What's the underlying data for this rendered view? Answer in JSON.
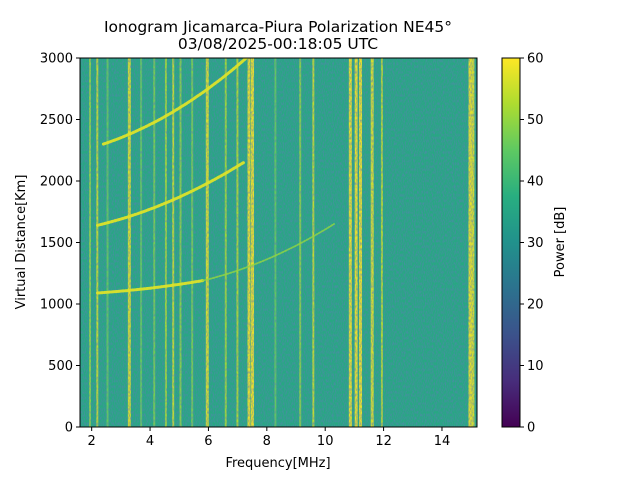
{
  "chart_data": {
    "type": "heatmap",
    "title": "Ionogram Jicamarca-Piura Polarization NE45°",
    "subtitle": "03/08/2025-00:18:05 UTC",
    "xlabel": "Frequency[MHz]",
    "ylabel": "Virtual Distance[Km]",
    "xlim": [
      1.6,
      15.2
    ],
    "ylim": [
      0,
      3000
    ],
    "x_ticks": [
      2,
      4,
      6,
      8,
      10,
      12,
      14
    ],
    "y_ticks": [
      0,
      500,
      1000,
      1500,
      2000,
      2500,
      3000
    ],
    "colorbar": {
      "label": "Power [dB]",
      "range": [
        0,
        60
      ],
      "ticks": [
        0,
        10,
        20,
        30,
        40,
        50,
        60
      ],
      "colormap": "viridis"
    },
    "background_power_db": 36,
    "vertical_interference": [
      {
        "freq": 1.95,
        "power": 50
      },
      {
        "freq": 2.2,
        "power": 56
      },
      {
        "freq": 2.55,
        "power": 46
      },
      {
        "freq": 3.28,
        "power": 58
      },
      {
        "freq": 3.7,
        "power": 46
      },
      {
        "freq": 4.15,
        "power": 48
      },
      {
        "freq": 4.55,
        "power": 52
      },
      {
        "freq": 4.8,
        "power": 56
      },
      {
        "freq": 5.05,
        "power": 50
      },
      {
        "freq": 5.45,
        "power": 48
      },
      {
        "freq": 5.95,
        "power": 58
      },
      {
        "freq": 6.6,
        "power": 52
      },
      {
        "freq": 7.0,
        "power": 54
      },
      {
        "freq": 7.38,
        "power": 60
      },
      {
        "freq": 7.5,
        "power": 60
      },
      {
        "freq": 8.3,
        "power": 46
      },
      {
        "freq": 9.15,
        "power": 50
      },
      {
        "freq": 9.6,
        "power": 56
      },
      {
        "freq": 10.85,
        "power": 60
      },
      {
        "freq": 11.05,
        "power": 60
      },
      {
        "freq": 11.2,
        "power": 60
      },
      {
        "freq": 11.6,
        "power": 58
      },
      {
        "freq": 11.95,
        "power": 54
      },
      {
        "freq": 14.95,
        "power": 60
      },
      {
        "freq": 15.05,
        "power": 58
      }
    ],
    "echo_traces": [
      {
        "name": "F-layer 1st hop",
        "freq_start": 2.2,
        "freq_end": 5.8,
        "km_start": 1090,
        "km_end": 1190
      },
      {
        "name": "F-layer 1st hop (weak)",
        "freq_start": 5.8,
        "freq_end": 10.3,
        "km_start": 1190,
        "km_end": 1650
      },
      {
        "name": "F-layer 2nd hop",
        "freq_start": 2.2,
        "freq_end": 7.2,
        "km_start": 1640,
        "km_end": 2150
      },
      {
        "name": "F-layer 3rd hop",
        "freq_start": 2.4,
        "freq_end": 7.3,
        "km_start": 2300,
        "km_end": 3000
      }
    ]
  }
}
